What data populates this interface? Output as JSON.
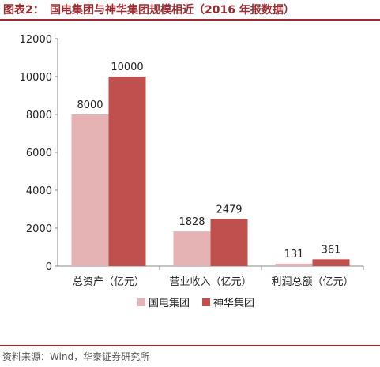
{
  "header": {
    "figure_label": "图表2：",
    "title": "国电集团与神华集团规模相近（2016 年报数据）"
  },
  "source": {
    "label": "资料来源：",
    "text": "Wind，华泰证券研究所"
  },
  "colors": {
    "accent": "#9c2a2f",
    "series_1": "#e6b3b4",
    "series_2": "#c0504d"
  },
  "chart_data": {
    "type": "bar",
    "title": "国电集团与神华集团规模相近（2016 年报数据）",
    "categories": [
      "总资产（亿元）",
      "营业收入（亿元）",
      "利润总额（亿元）"
    ],
    "series": [
      {
        "name": "国电集团",
        "values": [
          8000,
          1828,
          131
        ]
      },
      {
        "name": "神华集团",
        "values": [
          10000,
          2479,
          361
        ]
      }
    ],
    "yticks": [
      "0",
      "2000",
      "4000",
      "6000",
      "8000",
      "10000",
      "12000"
    ],
    "ylim": [
      0,
      12000
    ],
    "grid": false,
    "legend_position": "bottom",
    "data_labels": true
  }
}
